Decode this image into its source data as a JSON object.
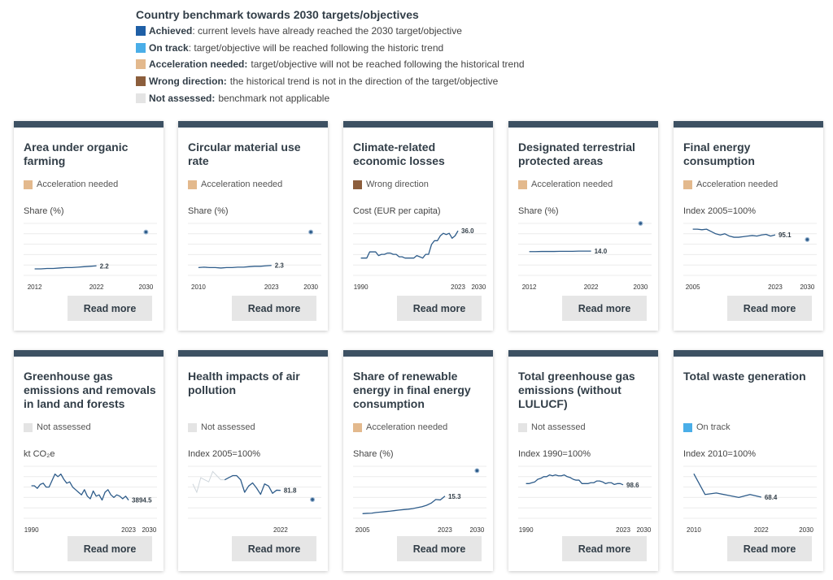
{
  "legend": {
    "title": "Country benchmark towards 2030 targets/objectives",
    "items": [
      {
        "name": "Achieved",
        "desc": ": current levels have already reached the 2030 target/objective",
        "color": "#1f5fa6"
      },
      {
        "name": "On track",
        "desc": ": target/objective will be reached following the historic trend",
        "color": "#4aaee8"
      },
      {
        "name": "Acceleration needed:",
        "desc": "target/objective will not be reached following the historical trend",
        "color": "#e3b98d"
      },
      {
        "name": "Wrong direction:",
        "desc": "the historical trend is not in the direction of the target/objective",
        "color": "#8c5e3c"
      },
      {
        "name": "Not assessed:",
        "desc": "benchmark not applicable",
        "color": "#e4e4e4"
      }
    ]
  },
  "read_more_label": "Read more",
  "cards": [
    {
      "title": "Area under organic farming",
      "status": "Acceleration needed",
      "status_color": "#e3b98d",
      "unit": "Share (%)",
      "ticks": [
        "2012",
        "2022",
        "2030"
      ],
      "value_label": "2.2",
      "target": true,
      "chart_data": {
        "type": "line",
        "x": [
          2012,
          2013,
          2014,
          2015,
          2016,
          2017,
          2018,
          2019,
          2020,
          2021,
          2022
        ],
        "y": [
          1.5,
          1.5,
          1.6,
          1.6,
          1.7,
          1.8,
          1.8,
          1.9,
          2.0,
          2.1,
          2.2
        ],
        "xlim": [
          2011,
          2031
        ],
        "ylim": [
          0,
          12
        ],
        "target": {
          "x": 2030,
          "y": 10
        }
      }
    },
    {
      "title": "Circular material use rate",
      "status": "Acceleration needed",
      "status_color": "#e3b98d",
      "unit": "Share (%)",
      "ticks": [
        "2010",
        "2023",
        "2030"
      ],
      "value_label": "2.3",
      "target": true,
      "chart_data": {
        "type": "line",
        "x": [
          2010,
          2011,
          2012,
          2013,
          2014,
          2015,
          2016,
          2017,
          2018,
          2019,
          2020,
          2021,
          2022,
          2023
        ],
        "y": [
          1.8,
          1.9,
          1.8,
          1.8,
          1.7,
          1.8,
          1.8,
          1.9,
          1.9,
          2.0,
          2.1,
          2.1,
          2.2,
          2.3
        ],
        "xlim": [
          2009,
          2031
        ],
        "ylim": [
          0,
          12
        ],
        "target": {
          "x": 2030,
          "y": 10
        }
      }
    },
    {
      "title": "Climate-related economic losses",
      "status": "Wrong direction",
      "status_color": "#8c5e3c",
      "unit": "Cost (EUR per capita)",
      "ticks": [
        "1990",
        "2023",
        "2030"
      ],
      "value_label": "36.0",
      "target": false,
      "chart_data": {
        "type": "line",
        "x": [
          1990,
          1991,
          1992,
          1993,
          1994,
          1995,
          1996,
          1997,
          1998,
          1999,
          2000,
          2001,
          2002,
          2003,
          2004,
          2005,
          2006,
          2007,
          2008,
          2009,
          2010,
          2011,
          2012,
          2013,
          2014,
          2015,
          2016,
          2017,
          2018,
          2019,
          2020,
          2021,
          2022,
          2023
        ],
        "y": [
          14,
          14,
          14,
          19,
          19,
          19,
          16,
          17,
          17,
          18,
          18,
          17,
          17,
          15,
          15,
          14,
          14,
          14,
          14,
          16,
          15,
          14,
          17,
          17,
          25,
          28,
          28,
          32,
          34,
          33,
          34,
          30,
          32,
          36
        ],
        "xlim": [
          1989,
          2031
        ],
        "ylim": [
          0,
          42
        ]
      }
    },
    {
      "title": "Designated terrestrial protected areas",
      "status": "Acceleration needed",
      "status_color": "#e3b98d",
      "unit": "Share (%)",
      "ticks": [
        "2012",
        "2022",
        "2030"
      ],
      "value_label": "14.0",
      "target": true,
      "chart_data": {
        "type": "line",
        "x": [
          2012,
          2013,
          2014,
          2015,
          2016,
          2017,
          2018,
          2019,
          2020,
          2021,
          2022
        ],
        "y": [
          13.7,
          13.7,
          13.8,
          13.8,
          13.8,
          13.9,
          13.9,
          13.9,
          14.0,
          14.0,
          14.0
        ],
        "xlim": [
          2011,
          2031
        ],
        "ylim": [
          0,
          30
        ],
        "target": {
          "x": 2030,
          "y": 30
        }
      }
    },
    {
      "title": "Final energy consumption",
      "status": "Acceleration needed",
      "status_color": "#e3b98d",
      "unit": "Index 2005=100%",
      "ticks": [
        "2005",
        "2023",
        "2030"
      ],
      "value_label": "95.1",
      "target": true,
      "chart_data": {
        "type": "line",
        "x": [
          2005,
          2006,
          2007,
          2008,
          2009,
          2010,
          2011,
          2012,
          2013,
          2014,
          2015,
          2016,
          2017,
          2018,
          2019,
          2020,
          2021,
          2022,
          2023
        ],
        "y": [
          100,
          100,
          99.5,
          100,
          98,
          96,
          95,
          96,
          94,
          93,
          93,
          93.5,
          94,
          94.5,
          94,
          95,
          95.5,
          94,
          95.1
        ],
        "xlim": [
          2004,
          2031
        ],
        "ylim": [
          60,
          105
        ],
        "target": {
          "x": 2030,
          "y": 91
        }
      }
    },
    {
      "title": "Greenhouse gas emissions and removals in land and forests",
      "status": "Not assessed",
      "status_color": "#e4e4e4",
      "unit": "kt CO₂e",
      "ticks": [
        "1990",
        "2023",
        "2030"
      ],
      "value_label": "3894.5",
      "target": false,
      "chart_data": {
        "type": "line",
        "x": [
          1990,
          1991,
          1992,
          1993,
          1994,
          1995,
          1996,
          1997,
          1998,
          1999,
          2000,
          2001,
          2002,
          2003,
          2004,
          2005,
          2006,
          2007,
          2008,
          2009,
          2010,
          2011,
          2012,
          2013,
          2014,
          2015,
          2016,
          2017,
          2018,
          2019,
          2020,
          2021,
          2022,
          2023
        ],
        "y": [
          5000,
          5000,
          4800,
          5100,
          5200,
          4900,
          4900,
          5400,
          5900,
          5700,
          5900,
          5500,
          5200,
          5300,
          4900,
          4700,
          4500,
          4300,
          4700,
          4200,
          4000,
          4600,
          4200,
          4300,
          3900,
          4500,
          4700,
          4300,
          4100,
          4300,
          4200,
          4000,
          4200,
          3894.5
        ],
        "xlim": [
          1989,
          2031
        ],
        "ylim": [
          2500,
          6500
        ]
      }
    },
    {
      "title": "Health impacts of air pollution",
      "status": "Not assessed",
      "status_color": "#e4e4e4",
      "unit": "Index 2005=100%",
      "ticks": [
        "2022"
      ],
      "value_label": "81.8",
      "target": true,
      "chart_data": {
        "type": "line",
        "x": [
          2008,
          2009,
          2010,
          2011,
          2012,
          2013,
          2014,
          2015,
          2016,
          2017,
          2018,
          2019,
          2020,
          2021,
          2022
        ],
        "y": [
          92,
          94,
          96,
          96,
          92,
          80,
          86,
          89,
          84,
          78,
          88,
          86,
          79,
          82,
          81.8
        ],
        "xlim": [
          2000,
          2031
        ],
        "ylim": [
          55,
          105
        ],
        "pre_series": {
          "x": [
            2000,
            2001,
            2002,
            2003,
            2004,
            2005,
            2006,
            2007,
            2008
          ],
          "y": [
            88,
            80,
            94,
            92,
            90,
            100,
            96,
            92,
            92
          ]
        },
        "target": {
          "x": 2030,
          "y": 73
        }
      }
    },
    {
      "title": "Share of renewable energy in final energy consumption",
      "status": "Acceleration needed",
      "status_color": "#e3b98d",
      "unit": "Share (%)",
      "ticks": [
        "2005",
        "2023",
        "2030"
      ],
      "value_label": "15.3",
      "target": true,
      "chart_data": {
        "type": "line",
        "x": [
          2005,
          2006,
          2007,
          2008,
          2009,
          2010,
          2011,
          2012,
          2013,
          2014,
          2015,
          2016,
          2017,
          2018,
          2019,
          2020,
          2021,
          2022,
          2023
        ],
        "y": [
          3.2,
          3.4,
          3.5,
          4.0,
          4.3,
          4.6,
          4.9,
          5.3,
          5.7,
          6.0,
          6.3,
          6.7,
          7.4,
          8.0,
          9.0,
          10.5,
          13.0,
          12.7,
          15.3
        ],
        "xlim": [
          2004,
          2031
        ],
        "ylim": [
          0,
          36
        ],
        "target": {
          "x": 2030,
          "y": 33
        }
      }
    },
    {
      "title": "Total greenhouse gas emissions (without LULUCF)",
      "status": "Not assessed",
      "status_color": "#e4e4e4",
      "unit": "Index 1990=100%",
      "ticks": [
        "1990",
        "2023",
        "2030"
      ],
      "value_label": "98.6",
      "target": false,
      "chart_data": {
        "type": "line",
        "x": [
          1990,
          1991,
          1992,
          1993,
          1994,
          1995,
          1996,
          1997,
          1998,
          1999,
          2000,
          2001,
          2002,
          2003,
          2004,
          2005,
          2006,
          2007,
          2008,
          2009,
          2010,
          2011,
          2012,
          2013,
          2014,
          2015,
          2016,
          2017,
          2018,
          2019,
          2020,
          2021,
          2022,
          2023
        ],
        "y": [
          100,
          100,
          101,
          102,
          105,
          106,
          108,
          108,
          110,
          109,
          110,
          109,
          109,
          110,
          108,
          107,
          105,
          104,
          104,
          100,
          100,
          100,
          101,
          101,
          103,
          103,
          102,
          100,
          101,
          101,
          99,
          100,
          100,
          98.6
        ],
        "xlim": [
          1989,
          2031
        ],
        "ylim": [
          60,
          120
        ]
      }
    },
    {
      "title": "Total waste generation",
      "status": "On track",
      "status_color": "#4aaee8",
      "unit": "Index 2010=100%",
      "ticks": [
        "2010",
        "2022",
        "2030"
      ],
      "value_label": "68.4",
      "target": false,
      "chart_data": {
        "type": "line",
        "x": [
          2010,
          2012,
          2014,
          2016,
          2018,
          2020,
          2022
        ],
        "y": [
          100,
          72,
          74,
          71,
          68,
          72,
          68.4
        ],
        "xlim": [
          2009,
          2031
        ],
        "ylim": [
          40,
          110
        ]
      }
    }
  ]
}
